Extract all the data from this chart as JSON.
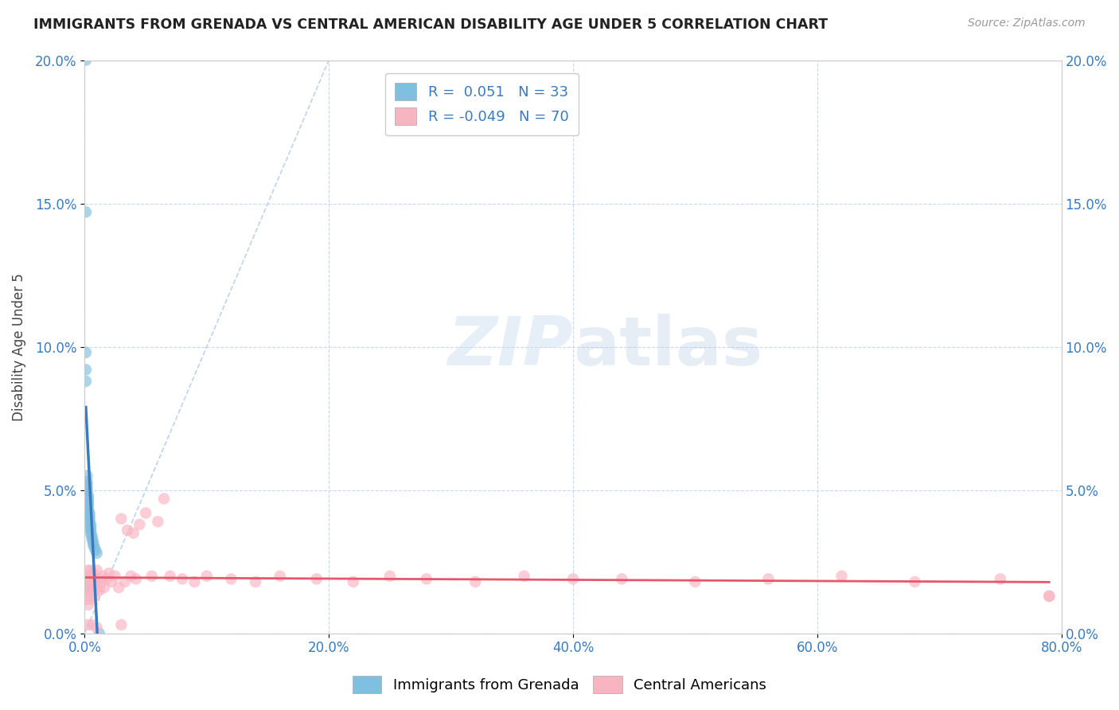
{
  "title": "IMMIGRANTS FROM GRENADA VS CENTRAL AMERICAN DISABILITY AGE UNDER 5 CORRELATION CHART",
  "source": "Source: ZipAtlas.com",
  "xlim": [
    0.0,
    0.8
  ],
  "ylim": [
    0.0,
    0.2
  ],
  "legend1_label": "Immigrants from Grenada",
  "legend2_label": "Central Americans",
  "r1": 0.051,
  "n1": 33,
  "r2": -0.049,
  "n2": 70,
  "blue_color": "#92c5de",
  "pink_color": "#f4a582",
  "blue_scatter_color": "#7fbfdf",
  "pink_scatter_color": "#f9b4c2",
  "blue_line_color": "#3a7bbf",
  "pink_line_color": "#e8566a",
  "diag_line_color": "#b0c8e8",
  "watermark_color": "#d8e8f5",
  "blue_scatter_x": [
    0.001,
    0.001,
    0.001,
    0.001,
    0.001,
    0.002,
    0.002,
    0.002,
    0.002,
    0.002,
    0.002,
    0.003,
    0.003,
    0.003,
    0.003,
    0.003,
    0.003,
    0.004,
    0.004,
    0.004,
    0.004,
    0.005,
    0.005,
    0.005,
    0.005,
    0.006,
    0.006,
    0.007,
    0.007,
    0.008,
    0.009,
    0.01,
    0.012
  ],
  "blue_scatter_y": [
    0.2,
    0.05,
    0.048,
    0.046,
    0.044,
    0.052,
    0.05,
    0.048,
    0.046,
    0.044,
    0.042,
    0.053,
    0.051,
    0.049,
    0.047,
    0.045,
    0.043,
    0.052,
    0.05,
    0.048,
    0.046,
    0.051,
    0.049,
    0.047,
    0.045,
    0.05,
    0.048,
    0.051,
    0.049,
    0.05,
    0.049,
    0.051,
    0.05
  ],
  "blue_scatter_y2": [
    0.2,
    0.147,
    0.098,
    0.092,
    0.088,
    0.055,
    0.053,
    0.052,
    0.051,
    0.05,
    0.049,
    0.048,
    0.047,
    0.046,
    0.045,
    0.044,
    0.043,
    0.042,
    0.041,
    0.04,
    0.039,
    0.038,
    0.037,
    0.036,
    0.035,
    0.034,
    0.033,
    0.032,
    0.031,
    0.03,
    0.029,
    0.028,
    0.0
  ],
  "pink_scatter_x": [
    0.001,
    0.001,
    0.002,
    0.002,
    0.002,
    0.003,
    0.003,
    0.003,
    0.003,
    0.004,
    0.004,
    0.005,
    0.005,
    0.005,
    0.006,
    0.006,
    0.007,
    0.007,
    0.008,
    0.008,
    0.009,
    0.01,
    0.01,
    0.011,
    0.012,
    0.013,
    0.015,
    0.016,
    0.018,
    0.02,
    0.022,
    0.025,
    0.028,
    0.03,
    0.033,
    0.035,
    0.038,
    0.04,
    0.042,
    0.045,
    0.05,
    0.055,
    0.06,
    0.065,
    0.07,
    0.08,
    0.09,
    0.1,
    0.12,
    0.14,
    0.16,
    0.19,
    0.22,
    0.25,
    0.28,
    0.32,
    0.36,
    0.4,
    0.44,
    0.5,
    0.56,
    0.62,
    0.68,
    0.75,
    0.79,
    0.003,
    0.006,
    0.01,
    0.03,
    0.79
  ],
  "pink_scatter_y": [
    0.018,
    0.015,
    0.02,
    0.016,
    0.012,
    0.022,
    0.018,
    0.015,
    0.01,
    0.02,
    0.016,
    0.022,
    0.018,
    0.012,
    0.02,
    0.015,
    0.021,
    0.016,
    0.02,
    0.013,
    0.018,
    0.022,
    0.016,
    0.019,
    0.015,
    0.018,
    0.02,
    0.016,
    0.019,
    0.021,
    0.018,
    0.02,
    0.016,
    0.04,
    0.018,
    0.036,
    0.02,
    0.035,
    0.019,
    0.038,
    0.042,
    0.02,
    0.039,
    0.047,
    0.02,
    0.019,
    0.018,
    0.02,
    0.019,
    0.018,
    0.02,
    0.019,
    0.018,
    0.02,
    0.019,
    0.018,
    0.02,
    0.019,
    0.019,
    0.018,
    0.019,
    0.02,
    0.018,
    0.019,
    0.013,
    0.003,
    0.003,
    0.002,
    0.003,
    0.013
  ]
}
